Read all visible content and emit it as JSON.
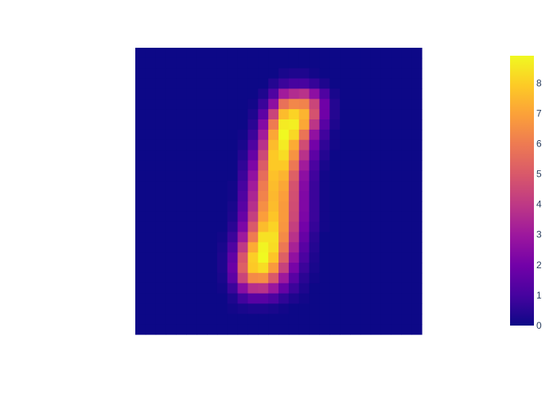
{
  "chart_data": {
    "type": "heatmap",
    "colorscale": "plasma",
    "colorscale_stops": [
      [
        0.0,
        "#0d0887"
      ],
      [
        0.111,
        "#46039f"
      ],
      [
        0.222,
        "#7201a8"
      ],
      [
        0.333,
        "#9c179e"
      ],
      [
        0.444,
        "#bd3786"
      ],
      [
        0.556,
        "#d8576b"
      ],
      [
        0.667,
        "#ed7953"
      ],
      [
        0.778,
        "#fb9f3a"
      ],
      [
        0.889,
        "#fdca26"
      ],
      [
        1.0,
        "#f0f921"
      ]
    ],
    "zmin": 0,
    "zmax": 8.9,
    "colorbar": {
      "tick_values": [
        0,
        1,
        2,
        3,
        4,
        5,
        6,
        7,
        8
      ],
      "tick_labels": [
        "0",
        "1",
        "2",
        "3",
        "4",
        "5",
        "6",
        "7",
        "8"
      ]
    },
    "grid": {
      "rows": 28,
      "cols": 28
    },
    "z": [
      [
        0,
        0,
        0,
        0,
        0,
        0,
        0,
        0,
        0,
        0,
        0,
        0,
        0,
        0,
        0,
        0,
        0,
        0,
        0,
        0,
        0,
        0,
        0,
        0,
        0,
        0,
        0,
        0
      ],
      [
        0,
        0,
        0,
        0,
        0,
        0,
        0,
        0,
        0,
        0,
        0,
        0,
        0,
        0,
        0,
        0,
        0,
        0,
        0,
        0,
        0,
        0,
        0,
        0,
        0,
        0,
        0,
        0
      ],
      [
        0,
        0,
        0,
        0,
        0,
        0,
        0,
        0,
        0,
        0,
        0,
        0,
        0,
        0,
        0.2,
        0.3,
        0.3,
        0.1,
        0,
        0,
        0,
        0,
        0,
        0,
        0,
        0,
        0,
        0
      ],
      [
        0,
        0,
        0,
        0,
        0,
        0,
        0,
        0,
        0,
        0,
        0,
        0,
        0,
        0.4,
        0.8,
        1,
        1,
        0.7,
        0.3,
        0,
        0,
        0,
        0,
        0,
        0,
        0,
        0,
        0
      ],
      [
        0,
        0,
        0,
        0,
        0,
        0,
        0,
        0,
        0,
        0,
        0,
        0,
        0.3,
        1.2,
        3.1,
        3.6,
        3.8,
        2.6,
        1.2,
        0.2,
        0,
        0,
        0,
        0,
        0,
        0,
        0,
        0
      ],
      [
        0,
        0,
        0,
        0,
        0,
        0,
        0,
        0,
        0,
        0,
        0,
        0.1,
        0.8,
        2.6,
        5.7,
        6.3,
        6.2,
        4.4,
        1.9,
        0.4,
        0,
        0,
        0,
        0,
        0,
        0,
        0,
        0
      ],
      [
        0,
        0,
        0,
        0,
        0,
        0,
        0,
        0,
        0,
        0,
        0,
        0.3,
        1.5,
        4.4,
        7.6,
        8.1,
        7.4,
        4.8,
        1.9,
        0.4,
        0,
        0,
        0,
        0,
        0,
        0,
        0,
        0
      ],
      [
        0,
        0,
        0,
        0,
        0,
        0,
        0,
        0,
        0,
        0,
        0,
        0.5,
        2.4,
        6,
        8.6,
        8.7,
        7.1,
        3.9,
        1.4,
        0.3,
        0,
        0,
        0,
        0,
        0,
        0,
        0,
        0
      ],
      [
        0,
        0,
        0,
        0,
        0,
        0,
        0,
        0,
        0,
        0,
        0.1,
        0.8,
        3.1,
        7.1,
        8.9,
        8.2,
        5.8,
        2.7,
        0.9,
        0.1,
        0,
        0,
        0,
        0,
        0,
        0,
        0,
        0
      ],
      [
        0,
        0,
        0,
        0,
        0,
        0,
        0,
        0,
        0,
        0,
        0.2,
        1.2,
        3.8,
        7.6,
        8.6,
        7.2,
        4.6,
        2,
        0.6,
        0.1,
        0,
        0,
        0,
        0,
        0,
        0,
        0,
        0
      ],
      [
        0,
        0,
        0,
        0,
        0,
        0,
        0,
        0,
        0,
        0,
        0.4,
        1.7,
        4.5,
        7.9,
        8.3,
        6.6,
        3.8,
        1.5,
        0.4,
        0,
        0,
        0,
        0,
        0,
        0,
        0,
        0,
        0
      ],
      [
        0,
        0,
        0,
        0,
        0,
        0,
        0,
        0,
        0,
        0,
        0.6,
        2.2,
        5.1,
        7.9,
        7.9,
        5.9,
        3.1,
        1.1,
        0.2,
        0,
        0,
        0,
        0,
        0,
        0,
        0,
        0,
        0
      ],
      [
        0,
        0,
        0,
        0,
        0,
        0,
        0,
        0,
        0,
        0,
        0.8,
        2.7,
        5.6,
        7.7,
        7.4,
        5.2,
        2.6,
        0.9,
        0.1,
        0,
        0,
        0,
        0,
        0,
        0,
        0,
        0,
        0
      ],
      [
        0,
        0,
        0,
        0,
        0,
        0,
        0,
        0,
        0,
        0.1,
        1,
        3.1,
        6,
        7.6,
        7.1,
        4.8,
        2.4,
        0.8,
        0.1,
        0,
        0,
        0,
        0,
        0,
        0,
        0,
        0,
        0
      ],
      [
        0,
        0,
        0,
        0,
        0,
        0,
        0,
        0,
        0,
        0.1,
        1.2,
        3.4,
        6.2,
        7.5,
        6.9,
        4.7,
        2.3,
        0.8,
        0.1,
        0,
        0,
        0,
        0,
        0,
        0,
        0,
        0,
        0
      ],
      [
        0,
        0,
        0,
        0,
        0,
        0,
        0,
        0,
        0,
        0.2,
        1.4,
        3.7,
        6.5,
        7.6,
        6.8,
        4.6,
        2.3,
        0.8,
        0.1,
        0,
        0,
        0,
        0,
        0,
        0,
        0,
        0,
        0
      ],
      [
        0,
        0,
        0,
        0,
        0,
        0,
        0,
        0,
        0,
        0.3,
        1.7,
        4.2,
        6.9,
        7.8,
        6.8,
        4.5,
        2.2,
        0.8,
        0.1,
        0,
        0,
        0,
        0,
        0,
        0,
        0,
        0,
        0
      ],
      [
        0,
        0,
        0,
        0,
        0,
        0,
        0,
        0,
        0,
        0.5,
        2.2,
        5,
        7.6,
        8.1,
        6.7,
        4.2,
        2,
        0.7,
        0.1,
        0,
        0,
        0,
        0,
        0,
        0,
        0,
        0,
        0
      ],
      [
        0,
        0,
        0,
        0,
        0,
        0,
        0,
        0,
        0.1,
        0.8,
        3,
        6,
        8.4,
        8.4,
        6.4,
        3.8,
        1.7,
        0.5,
        0,
        0,
        0,
        0,
        0,
        0,
        0,
        0,
        0,
        0
      ],
      [
        0,
        0,
        0,
        0,
        0,
        0,
        0,
        0,
        0.2,
        1.2,
        4,
        7.2,
        8.8,
        8.3,
        5.9,
        3.3,
        1.4,
        0.4,
        0,
        0,
        0,
        0,
        0,
        0,
        0,
        0,
        0,
        0
      ],
      [
        0,
        0,
        0,
        0,
        0,
        0,
        0,
        0,
        0.3,
        1.6,
        4.9,
        8,
        8.9,
        7.8,
        5.2,
        2.7,
        1.1,
        0.3,
        0,
        0,
        0,
        0,
        0,
        0,
        0,
        0,
        0,
        0
      ],
      [
        0,
        0,
        0,
        0,
        0,
        0,
        0,
        0,
        0.3,
        1.8,
        5.2,
        7.9,
        8.3,
        6.8,
        4.3,
        2.1,
        0.8,
        0.2,
        0,
        0,
        0,
        0,
        0,
        0,
        0,
        0,
        0,
        0
      ],
      [
        0,
        0,
        0,
        0,
        0,
        0,
        0,
        0,
        0.2,
        1.5,
        4.4,
        6.4,
        6.5,
        5,
        3,
        1.4,
        0.5,
        0.1,
        0,
        0,
        0,
        0,
        0,
        0,
        0,
        0,
        0,
        0
      ],
      [
        0,
        0,
        0,
        0,
        0,
        0,
        0,
        0,
        0.1,
        0.8,
        2.5,
        3.7,
        3.8,
        2.9,
        1.7,
        0.8,
        0.3,
        0,
        0,
        0,
        0,
        0,
        0,
        0,
        0,
        0,
        0,
        0
      ],
      [
        0,
        0,
        0,
        0,
        0,
        0,
        0,
        0,
        0,
        0.3,
        0.9,
        1.4,
        1.4,
        1.1,
        0.6,
        0.3,
        0.1,
        0,
        0,
        0,
        0,
        0,
        0,
        0,
        0,
        0,
        0,
        0
      ],
      [
        0,
        0,
        0,
        0,
        0,
        0,
        0,
        0,
        0,
        0.1,
        0.2,
        0.3,
        0.3,
        0.2,
        0.1,
        0,
        0,
        0,
        0,
        0,
        0,
        0,
        0,
        0,
        0,
        0,
        0,
        0
      ],
      [
        0,
        0,
        0,
        0,
        0,
        0,
        0,
        0,
        0,
        0,
        0,
        0,
        0,
        0,
        0,
        0,
        0,
        0,
        0,
        0,
        0,
        0,
        0,
        0,
        0,
        0,
        0,
        0
      ],
      [
        0,
        0,
        0,
        0,
        0,
        0,
        0,
        0,
        0,
        0,
        0,
        0,
        0,
        0,
        0,
        0,
        0,
        0,
        0,
        0,
        0,
        0,
        0,
        0,
        0,
        0,
        0,
        0
      ]
    ]
  }
}
